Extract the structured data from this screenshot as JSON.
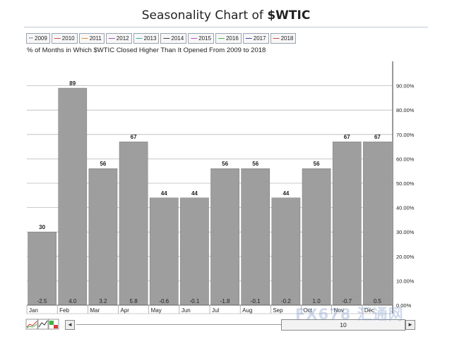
{
  "header": {
    "title_prefix": "Seasonality Chart of ",
    "title_symbol": "$WTIC"
  },
  "legend": [
    {
      "label": "2009",
      "color": "#333333",
      "marker": "··"
    },
    {
      "label": "2010",
      "color": "#d43c3c",
      "marker": "—"
    },
    {
      "label": "2011",
      "color": "#e08a2c",
      "marker": "—"
    },
    {
      "label": "2012",
      "color": "#8a4bbf",
      "marker": "—"
    },
    {
      "label": "2013",
      "color": "#2aa6a6",
      "marker": "—"
    },
    {
      "label": "2014",
      "color": "#333333",
      "marker": "—"
    },
    {
      "label": "2015",
      "color": "#c73cc7",
      "marker": "—"
    },
    {
      "label": "2016",
      "color": "#3cb43c",
      "marker": "—"
    },
    {
      "label": "2017",
      "color": "#333399",
      "marker": "—"
    },
    {
      "label": "2018",
      "color": "#d43c3c",
      "marker": "—"
    }
  ],
  "subtitle": "% of Months in Which $WTIC Closed Higher Than It Opened From 2009 to 2018",
  "chart_data": {
    "type": "bar",
    "categories": [
      "Jan",
      "Feb",
      "Mar",
      "Apr",
      "May",
      "Jun",
      "Jul",
      "Aug",
      "Sep",
      "Oct",
      "Nov",
      "Dec"
    ],
    "values": [
      30,
      89,
      56,
      67,
      44,
      44,
      56,
      56,
      44,
      56,
      67,
      67
    ],
    "value_labels": [
      "30",
      "89",
      "56",
      "67",
      "44",
      "44",
      "56",
      "56",
      "44",
      "56",
      "67",
      "67"
    ],
    "avg_change_labels": [
      "-2.5",
      "4.0",
      "3.2",
      "5.8",
      "-0.6",
      "-0.1",
      "-1.8",
      "-0.1",
      "-0.2",
      "1.0",
      "-0.7",
      "0.5"
    ],
    "y_ticks": [
      0,
      10,
      20,
      30,
      40,
      50,
      60,
      70,
      80,
      90
    ],
    "y_tick_labels": [
      "0.00%",
      "10.00%",
      "20.00%",
      "30.00%",
      "40.00%",
      "50.00%",
      "60.00%",
      "70.00%",
      "80.00%",
      "90.00%"
    ],
    "ylim": [
      0,
      100
    ],
    "bar_color": "#9e9e9e",
    "grid": true,
    "y_axis_position": "right"
  },
  "controls": {
    "scroll_value": "10",
    "left_arrow": "◄",
    "right_arrow": "►"
  },
  "watermark": "FX678 汇通网"
}
